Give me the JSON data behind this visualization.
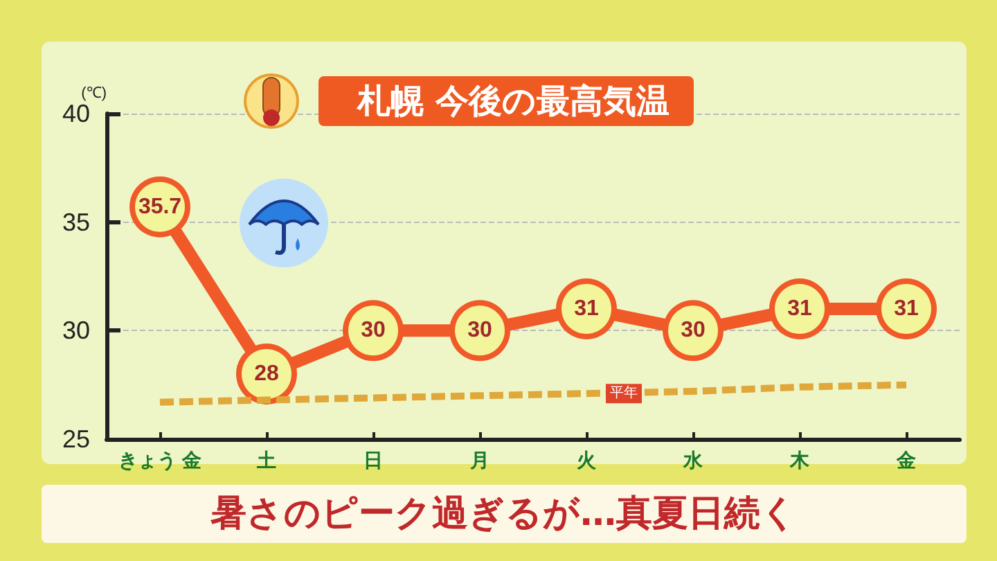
{
  "chart_data": {
    "type": "line",
    "title": "札幌 今後の最高気温",
    "ylabel": "(℃)",
    "categories": [
      "きょう 金",
      "土",
      "日",
      "月",
      "火",
      "水",
      "木",
      "金"
    ],
    "series": [
      {
        "color": "#f05a28",
        "values": [
          35.7,
          28,
          30,
          30,
          31,
          30,
          31,
          31
        ],
        "marker": "circle",
        "line_style": "solid",
        "data_labels": true
      },
      {
        "name": "平年",
        "color": "#e0a83a",
        "values": [
          26.7,
          26.8,
          26.9,
          27.0,
          27.1,
          27.2,
          27.4,
          27.5
        ],
        "marker": "none",
        "line_style": "dashed"
      }
    ],
    "ylim": [
      25,
      40
    ],
    "yticks": [
      25,
      30,
      35,
      40
    ],
    "grid": "y",
    "annotations": [
      "暑さのピーク過ぎるが…真夏日続く"
    ]
  }
}
